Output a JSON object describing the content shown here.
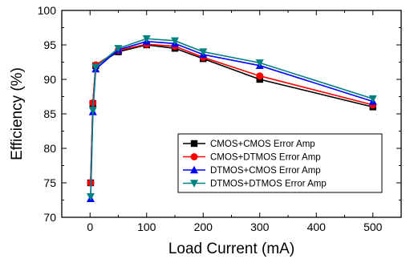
{
  "chart_data": {
    "type": "line",
    "title": "",
    "xlabel": "Load Current (mA)",
    "ylabel": "Efficiency (%)",
    "xlim": [
      -50,
      550
    ],
    "ylim": [
      70,
      100
    ],
    "x_ticks": [
      0,
      100,
      200,
      300,
      400,
      500
    ],
    "y_ticks": [
      70,
      75,
      80,
      85,
      90,
      95,
      100
    ],
    "grid": false,
    "legend_position": "lower-right",
    "series": [
      {
        "name": "CMOS+CMOS Error Amp",
        "color": "#000000",
        "marker": "square",
        "x": [
          1,
          5,
          10,
          50,
          100,
          150,
          200,
          300,
          500
        ],
        "y": [
          75.0,
          86.5,
          92.0,
          94.0,
          95.0,
          94.5,
          93.0,
          90.0,
          86.0
        ]
      },
      {
        "name": "CMOS+DTMOS Error Amp",
        "color": "#ff0000",
        "marker": "circle",
        "x": [
          1,
          5,
          10,
          50,
          100,
          150,
          200,
          300,
          500
        ],
        "y": [
          75.0,
          86.6,
          92.1,
          94.2,
          95.1,
          94.8,
          93.2,
          90.5,
          86.3
        ]
      },
      {
        "name": "DTMOS+CMOS Error Amp",
        "color": "#0000ff",
        "marker": "triangle-up",
        "x": [
          1,
          5,
          10,
          50,
          100,
          150,
          200,
          300,
          500
        ],
        "y": [
          72.7,
          85.3,
          91.5,
          94.3,
          95.5,
          95.2,
          93.6,
          92.0,
          86.8
        ]
      },
      {
        "name": "DTMOS+DTMOS Error Amp",
        "color": "#008080",
        "marker": "triangle-down",
        "x": [
          1,
          5,
          10,
          50,
          100,
          150,
          200,
          300,
          500
        ],
        "y": [
          73.0,
          85.5,
          91.8,
          94.5,
          95.9,
          95.6,
          94.0,
          92.4,
          87.2
        ]
      }
    ]
  }
}
